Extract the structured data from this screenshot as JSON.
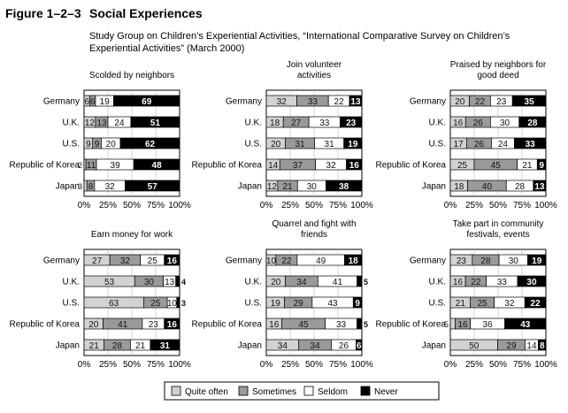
{
  "figure": {
    "number": "Figure 1–2–3",
    "title": "Social Experiences",
    "source_line1": "Study Group on Children’s Experiential Activities, “International Comparative Survey on Children’s",
    "source_line2": "Experiential Activities” (March 2000)"
  },
  "colors": {
    "quite_often": "#d2d2d2",
    "sometimes": "#9a9a9a",
    "seldom": "#ffffff",
    "never": "#000000",
    "text": "#111111"
  },
  "chart_data": [
    {
      "type": "bar",
      "stacked": true,
      "orientation": "horizontal",
      "title": "Scolded by neighbors",
      "categories": [
        "Germany",
        "U.K.",
        "U.S.",
        "Republic of Korea",
        "Japan"
      ],
      "series": [
        {
          "name": "Quite often",
          "values": [
            6,
            12,
            9,
            2,
            3
          ]
        },
        {
          "name": "Sometimes",
          "values": [
            6,
            13,
            9,
            11,
            8
          ]
        },
        {
          "name": "Seldom",
          "values": [
            19,
            24,
            20,
            39,
            32
          ]
        },
        {
          "name": "Never",
          "values": [
            69,
            51,
            62,
            48,
            57
          ]
        }
      ],
      "xlim": [
        0,
        100
      ],
      "xticks": [
        "0%",
        "25%",
        "50%",
        "75%",
        "100%"
      ]
    },
    {
      "type": "bar",
      "stacked": true,
      "orientation": "horizontal",
      "title": "Join volunteer activities",
      "categories": [
        "Germany",
        "U.K.",
        "U.S.",
        "Republic of Korea",
        "Japan"
      ],
      "series": [
        {
          "name": "Quite often",
          "values": [
            32,
            18,
            20,
            14,
            12
          ]
        },
        {
          "name": "Sometimes",
          "values": [
            33,
            27,
            31,
            37,
            21
          ]
        },
        {
          "name": "Seldom",
          "values": [
            22,
            33,
            31,
            32,
            30
          ]
        },
        {
          "name": "Never",
          "values": [
            13,
            23,
            19,
            16,
            38
          ]
        }
      ],
      "xlim": [
        0,
        100
      ],
      "xticks": [
        "0%",
        "25%",
        "50%",
        "75%",
        "100%"
      ]
    },
    {
      "type": "bar",
      "stacked": true,
      "orientation": "horizontal",
      "title": "Praised by neighbors for good deed",
      "categories": [
        "Germany",
        "U.K.",
        "U.S.",
        "Republic of Korea",
        "Japan"
      ],
      "series": [
        {
          "name": "Quite often",
          "values": [
            20,
            16,
            17,
            25,
            18
          ]
        },
        {
          "name": "Sometimes",
          "values": [
            22,
            26,
            26,
            45,
            40
          ]
        },
        {
          "name": "Seldom",
          "values": [
            23,
            30,
            24,
            21,
            28
          ]
        },
        {
          "name": "Never",
          "values": [
            35,
            28,
            33,
            9,
            13
          ]
        }
      ],
      "xlim": [
        0,
        100
      ],
      "xticks": [
        "0%",
        "25%",
        "50%",
        "75%",
        "100%"
      ]
    },
    {
      "type": "bar",
      "stacked": true,
      "orientation": "horizontal",
      "title": "Earn money for work",
      "categories": [
        "Germany",
        "U.K.",
        "U.S.",
        "Republic of Korea",
        "Japan"
      ],
      "series": [
        {
          "name": "Quite often",
          "values": [
            27,
            53,
            63,
            20,
            21
          ]
        },
        {
          "name": "Sometimes",
          "values": [
            32,
            30,
            25,
            41,
            28
          ]
        },
        {
          "name": "Seldom",
          "values": [
            25,
            13,
            10,
            23,
            21
          ]
        },
        {
          "name": "Never",
          "values": [
            16,
            4,
            3,
            16,
            31
          ]
        }
      ],
      "xlim": [
        0,
        100
      ],
      "xticks": [
        "0%",
        "25%",
        "50%",
        "75%",
        "100%"
      ]
    },
    {
      "type": "bar",
      "stacked": true,
      "orientation": "horizontal",
      "title": "Quarrel and fight with friends",
      "categories": [
        "Germany",
        "U.K.",
        "U.S.",
        "Republic of Korea",
        "Japan"
      ],
      "series": [
        {
          "name": "Quite often",
          "values": [
            10,
            20,
            19,
            16,
            34
          ]
        },
        {
          "name": "Sometimes",
          "values": [
            22,
            34,
            29,
            45,
            34
          ]
        },
        {
          "name": "Seldom",
          "values": [
            49,
            41,
            43,
            33,
            26
          ]
        },
        {
          "name": "Never",
          "values": [
            18,
            5,
            9,
            5,
            6
          ]
        }
      ],
      "xlim": [
        0,
        100
      ],
      "xticks": [
        "0%",
        "25%",
        "50%",
        "75%",
        "100%"
      ]
    },
    {
      "type": "bar",
      "stacked": true,
      "orientation": "horizontal",
      "title": "Take part in community festivals, events",
      "categories": [
        "Germany",
        "U.K.",
        "U.S.",
        "Republic of Korea",
        "Japan"
      ],
      "series": [
        {
          "name": "Quite often",
          "values": [
            23,
            16,
            21,
            5,
            50
          ]
        },
        {
          "name": "Sometimes",
          "values": [
            28,
            22,
            25,
            16,
            29
          ]
        },
        {
          "name": "Seldom",
          "values": [
            30,
            33,
            32,
            36,
            14
          ]
        },
        {
          "name": "Never",
          "values": [
            19,
            30,
            22,
            43,
            8
          ]
        }
      ],
      "xlim": [
        0,
        100
      ],
      "xticks": [
        "0%",
        "25%",
        "50%",
        "75%",
        "100%"
      ]
    }
  ],
  "legend": {
    "items": [
      {
        "label": "Quite often",
        "key": "quite_often"
      },
      {
        "label": "Sometimes",
        "key": "sometimes"
      },
      {
        "label": "Seldom",
        "key": "seldom"
      },
      {
        "label": "Never",
        "key": "never"
      }
    ]
  }
}
